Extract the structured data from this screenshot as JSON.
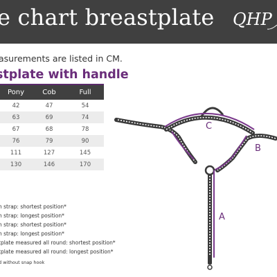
{
  "header": {
    "title": "e chart breastplate",
    "logo_text": "QHP"
  },
  "intro_text": "asurements are listed in CM.",
  "subtitle": "stplate with handle",
  "table": {
    "columns": [
      "Pony",
      "Cob",
      "Full"
    ],
    "rows": [
      [
        "42",
        "47",
        "54"
      ],
      [
        "63",
        "69",
        "74"
      ],
      [
        "67",
        "68",
        "78"
      ],
      [
        "76",
        "79",
        "90"
      ],
      [
        "111",
        "127",
        "145"
      ],
      [
        "130",
        "146",
        "170"
      ]
    ]
  },
  "notes": [
    "h strap: shortest position*",
    "h strap: longest position*",
    "h strap: shortest position*",
    "h strap: longest position*",
    "tplate measured all round: shortest position*",
    "tplate measured all round: longest position*"
  ],
  "footnote": "d without snap hook",
  "diagram": {
    "labels": {
      "a": "A",
      "b": "B",
      "c": "C"
    },
    "colors": {
      "strap": "#3a3a3a",
      "highlight": "#7b3a8c"
    }
  }
}
